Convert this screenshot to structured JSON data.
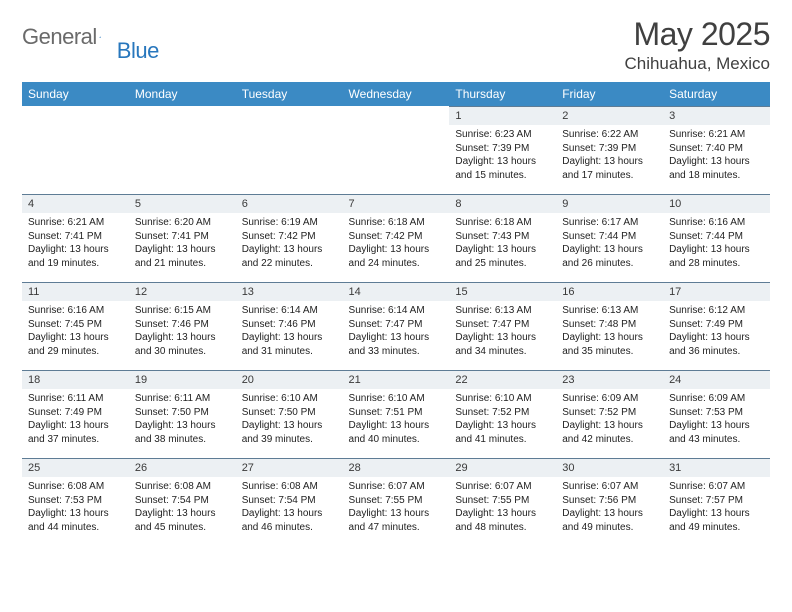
{
  "brand": {
    "part1": "General",
    "part2": "Blue"
  },
  "title": "May 2025",
  "location": "Chihuahua, Mexico",
  "theme": {
    "header_bg": "#3b8ac4",
    "header_text": "#ffffff",
    "daynum_bg": "#ecf0f3",
    "cell_border": "#5e7c95",
    "title_color": "#404040",
    "logo_gray": "#6a6a6a",
    "logo_blue": "#2877bd"
  },
  "weekdays": [
    "Sunday",
    "Monday",
    "Tuesday",
    "Wednesday",
    "Thursday",
    "Friday",
    "Saturday"
  ],
  "weeks": [
    [
      {
        "blank": true
      },
      {
        "blank": true
      },
      {
        "blank": true
      },
      {
        "blank": true
      },
      {
        "day": "1",
        "sunrise": "6:23 AM",
        "sunset": "7:39 PM",
        "daylight": "13 hours and 15 minutes."
      },
      {
        "day": "2",
        "sunrise": "6:22 AM",
        "sunset": "7:39 PM",
        "daylight": "13 hours and 17 minutes."
      },
      {
        "day": "3",
        "sunrise": "6:21 AM",
        "sunset": "7:40 PM",
        "daylight": "13 hours and 18 minutes."
      }
    ],
    [
      {
        "day": "4",
        "sunrise": "6:21 AM",
        "sunset": "7:41 PM",
        "daylight": "13 hours and 19 minutes."
      },
      {
        "day": "5",
        "sunrise": "6:20 AM",
        "sunset": "7:41 PM",
        "daylight": "13 hours and 21 minutes."
      },
      {
        "day": "6",
        "sunrise": "6:19 AM",
        "sunset": "7:42 PM",
        "daylight": "13 hours and 22 minutes."
      },
      {
        "day": "7",
        "sunrise": "6:18 AM",
        "sunset": "7:42 PM",
        "daylight": "13 hours and 24 minutes."
      },
      {
        "day": "8",
        "sunrise": "6:18 AM",
        "sunset": "7:43 PM",
        "daylight": "13 hours and 25 minutes."
      },
      {
        "day": "9",
        "sunrise": "6:17 AM",
        "sunset": "7:44 PM",
        "daylight": "13 hours and 26 minutes."
      },
      {
        "day": "10",
        "sunrise": "6:16 AM",
        "sunset": "7:44 PM",
        "daylight": "13 hours and 28 minutes."
      }
    ],
    [
      {
        "day": "11",
        "sunrise": "6:16 AM",
        "sunset": "7:45 PM",
        "daylight": "13 hours and 29 minutes."
      },
      {
        "day": "12",
        "sunrise": "6:15 AM",
        "sunset": "7:46 PM",
        "daylight": "13 hours and 30 minutes."
      },
      {
        "day": "13",
        "sunrise": "6:14 AM",
        "sunset": "7:46 PM",
        "daylight": "13 hours and 31 minutes."
      },
      {
        "day": "14",
        "sunrise": "6:14 AM",
        "sunset": "7:47 PM",
        "daylight": "13 hours and 33 minutes."
      },
      {
        "day": "15",
        "sunrise": "6:13 AM",
        "sunset": "7:47 PM",
        "daylight": "13 hours and 34 minutes."
      },
      {
        "day": "16",
        "sunrise": "6:13 AM",
        "sunset": "7:48 PM",
        "daylight": "13 hours and 35 minutes."
      },
      {
        "day": "17",
        "sunrise": "6:12 AM",
        "sunset": "7:49 PM",
        "daylight": "13 hours and 36 minutes."
      }
    ],
    [
      {
        "day": "18",
        "sunrise": "6:11 AM",
        "sunset": "7:49 PM",
        "daylight": "13 hours and 37 minutes."
      },
      {
        "day": "19",
        "sunrise": "6:11 AM",
        "sunset": "7:50 PM",
        "daylight": "13 hours and 38 minutes."
      },
      {
        "day": "20",
        "sunrise": "6:10 AM",
        "sunset": "7:50 PM",
        "daylight": "13 hours and 39 minutes."
      },
      {
        "day": "21",
        "sunrise": "6:10 AM",
        "sunset": "7:51 PM",
        "daylight": "13 hours and 40 minutes."
      },
      {
        "day": "22",
        "sunrise": "6:10 AM",
        "sunset": "7:52 PM",
        "daylight": "13 hours and 41 minutes."
      },
      {
        "day": "23",
        "sunrise": "6:09 AM",
        "sunset": "7:52 PM",
        "daylight": "13 hours and 42 minutes."
      },
      {
        "day": "24",
        "sunrise": "6:09 AM",
        "sunset": "7:53 PM",
        "daylight": "13 hours and 43 minutes."
      }
    ],
    [
      {
        "day": "25",
        "sunrise": "6:08 AM",
        "sunset": "7:53 PM",
        "daylight": "13 hours and 44 minutes."
      },
      {
        "day": "26",
        "sunrise": "6:08 AM",
        "sunset": "7:54 PM",
        "daylight": "13 hours and 45 minutes."
      },
      {
        "day": "27",
        "sunrise": "6:08 AM",
        "sunset": "7:54 PM",
        "daylight": "13 hours and 46 minutes."
      },
      {
        "day": "28",
        "sunrise": "6:07 AM",
        "sunset": "7:55 PM",
        "daylight": "13 hours and 47 minutes."
      },
      {
        "day": "29",
        "sunrise": "6:07 AM",
        "sunset": "7:55 PM",
        "daylight": "13 hours and 48 minutes."
      },
      {
        "day": "30",
        "sunrise": "6:07 AM",
        "sunset": "7:56 PM",
        "daylight": "13 hours and 49 minutes."
      },
      {
        "day": "31",
        "sunrise": "6:07 AM",
        "sunset": "7:57 PM",
        "daylight": "13 hours and 49 minutes."
      }
    ]
  ],
  "labels": {
    "sunrise": "Sunrise:",
    "sunset": "Sunset:",
    "daylight": "Daylight:"
  }
}
